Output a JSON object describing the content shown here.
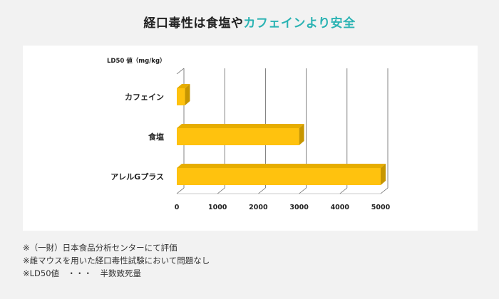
{
  "title": {
    "part1": "経口毒性は食塩や",
    "part2": "カフェインより安全"
  },
  "chart_data": {
    "type": "bar",
    "orientation": "horizontal",
    "unit_label": "LD50 値（mg/kg）",
    "categories": [
      "カフェイン",
      "食塩",
      "アレルGプラス"
    ],
    "values": [
      200,
      3000,
      5000
    ],
    "xlim": [
      0,
      5000
    ],
    "x_ticks": [
      "0",
      "1000",
      "2000",
      "3000",
      "4000",
      "5000"
    ],
    "grid": true,
    "bar_color": "#ffc20e",
    "bar_side_color": "#c79600",
    "bar_top_color": "#e6ad00"
  },
  "notes": [
    "※（一財）日本食品分析センターにて評価",
    "※雌マウスを用いた経口毒性試験において問題なし",
    "※LD50値　・・・　半数致死量"
  ],
  "colors": {
    "accent": "#2bb3b3",
    "background": "#f2f2f2",
    "panel": "#ffffff"
  }
}
